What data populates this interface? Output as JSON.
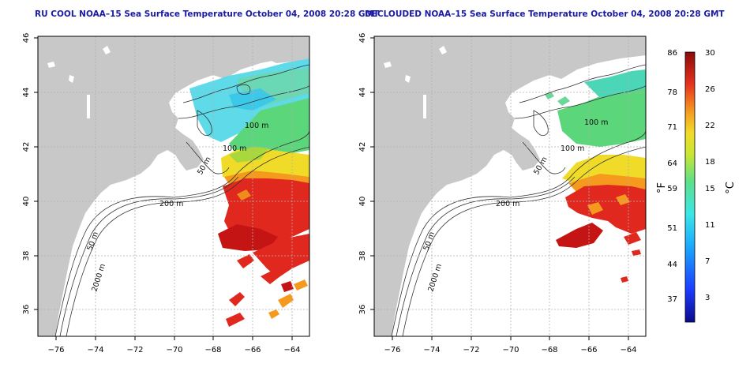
{
  "panels": [
    {
      "id": "left",
      "title": "RU COOL NOAA–15 Sea Surface Temperature October 04, 2008 20:28 GMT",
      "variant": "cool"
    },
    {
      "id": "right",
      "title": "DECLOUDED NOAA–15 Sea Surface Temperature October 04, 2008 20:28 GMT",
      "variant": "declouded"
    }
  ],
  "axes": {
    "x_ticks": [
      "−76",
      "−74",
      "−72",
      "−70",
      "−68",
      "−66",
      "−64"
    ],
    "y_ticks": [
      "36",
      "38",
      "40",
      "42",
      "44",
      "46"
    ],
    "lon_range": [
      -77,
      -63
    ],
    "lat_range": [
      35,
      46
    ]
  },
  "contour_labels": {
    "m100": "100 m",
    "m100b": "100 m",
    "m50": "50 m",
    "m200": "200 m",
    "m50b": "50 m",
    "m2000": "2000 m"
  },
  "colorbar": {
    "f_ticks": [
      "86",
      "78",
      "71",
      "64",
      "59",
      "51",
      "44",
      "37"
    ],
    "c_ticks": [
      "30",
      "26",
      "22",
      "18",
      "15",
      "11",
      "7",
      "3"
    ],
    "f_label": "°F",
    "c_label": "°C"
  },
  "colors": {
    "land": "#c8c8c8",
    "grid": "#b0b0b0",
    "warm": "#e0281e",
    "hot": "#c41414",
    "orange": "#f08c1e",
    "yellow": "#f0dc28",
    "green": "#4ccc6e",
    "cyan": "#4cd6e6",
    "title": "#1a1aa8"
  }
}
